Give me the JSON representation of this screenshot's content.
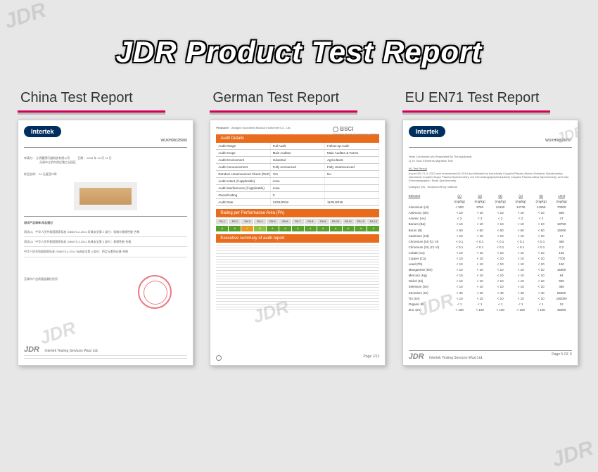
{
  "title": "JDR Product Test Report",
  "watermark": "JDR",
  "reports": [
    {
      "heading": "China Test Report",
      "badge": "Intertek",
      "doc_number": "WUXH00025006",
      "applicant_label": "申请方：",
      "applicant": "江阴嘉德乐器制造有限公司",
      "address": "无锡市江阴市周庄镇工业园区",
      "date_label": "日期：",
      "date": "2018 年 10 月 14 日",
      "sample_label": "样品名称：",
      "sample": "24 孔复音口琴",
      "standard1": "中华人民共和国国家标准 GB6675.2-2014 玩具安全第 2 部分：机械与物理性能   合格",
      "standard2": "中华人民共和国国家标准 GB6675.3-2014 玩具安全第 3 部分：易燃性能   合格",
      "standard3": "中华人民共和国国家标准 GB6675.4-2014 玩具安全第 4 部分：特定元素的迁移   合格",
      "section1": "测试产品清单,样品通过",
      "section2": "测试(1)",
      "section3": "测试(2)",
      "footer_org": "无锡市产品质量监督检验所",
      "footer_logo": "JDR",
      "footer_name": "Intertek Testing Services Wuxi Ltd."
    },
    {
      "heading": "German Test Report",
      "producer_label": "Producer:",
      "producer_name": "Jiangyin Soundreal Musical Instrument Co., Ltd.",
      "bsci_label": "BSCI",
      "bsci_sub": "Business Social Compliance Initiative",
      "audit_title": "Audit Details",
      "rows": [
        [
          "Audit Range",
          "Full Audit",
          "Follow-up Audit"
        ],
        [
          "Audit Scope",
          "Main Auditee",
          "Main Auditee & Farms"
        ],
        [
          "Audit Environment",
          "Industrial",
          "Agricultural"
        ],
        [
          "Audit Announcement",
          "Fully Announced",
          "Fully Unannounced"
        ],
        [
          "Random Unannounced Check (RUC)",
          "Yes",
          "No"
        ],
        [
          "Audit extent (if applicable)",
          "none",
          ""
        ],
        [
          "Audit interferences (if applicable)",
          "none",
          ""
        ],
        [
          "Overall rating",
          "C",
          ""
        ],
        [
          "Audit Date",
          "11/01/2018",
          "11/01/2018"
        ]
      ],
      "perf_title": "Rating per Performance Area (PA)",
      "perf_headers": [
        "PA 1",
        "PA 2",
        "PA 3",
        "PA 4",
        "PA 5",
        "PA 6",
        "PA 7",
        "PA 8",
        "PA 9",
        "PA 10",
        "PA 11",
        "PA 12",
        "PA 13"
      ],
      "perf_values": [
        "A",
        "A",
        "C",
        "B",
        "A",
        "A",
        "A",
        "A",
        "A",
        "A",
        "A",
        "A",
        "A"
      ],
      "perf_colors": [
        "#5aa02c",
        "#5aa02c",
        "#e69a1e",
        "#8fbf3f",
        "#5aa02c",
        "#5aa02c",
        "#5aa02c",
        "#5aa02c",
        "#5aa02c",
        "#5aa02c",
        "#5aa02c",
        "#5aa02c",
        "#5aa02c"
      ],
      "summary_title": "Executive summary of audit report",
      "page_label": "Page 1/12"
    },
    {
      "heading": "EU EN71 Test Report",
      "badge": "Intertek",
      "doc_number": "WUXH00026767",
      "tests_label": "Tests Conducted (As Requested By The Applicant)",
      "test1": "1) 19 Toxic Elements Migration Test",
      "result_title": "(A) Test Result",
      "method": "As per EN 71-3: 2013 and amendment A1:2014 and followed by Inductively Coupled Plasma Atomic Emission Spectrometry, Inductively Coupled Argon Plasma Spectrometry, Ion Chromatography/Inductively Coupled Plasma-Mass Spectrometry, and Gas Chromatography / Mass Spectrometry.",
      "category": "Category (III) : Scraped-off toy material",
      "columns": [
        "Element",
        "(1)",
        "(2)",
        "(3)",
        "(4)",
        "(5)",
        "Limit"
      ],
      "elements": [
        [
          "Aluminium (Al)",
          "< 500",
          "3750",
          "24150",
          "14730",
          "14260",
          "70000"
        ],
        [
          "Antimony (Sb)",
          "< 10",
          "< 10",
          "< 10",
          "< 10",
          "< 10",
          "560"
        ],
        [
          "Arsenic (As)",
          "< 2",
          "< 2",
          "< 2",
          "< 2",
          "< 2",
          "47"
        ],
        [
          "Barium (Ba)",
          "< 10",
          "< 10",
          "< 10",
          "< 10",
          "< 10",
          "18750"
        ],
        [
          "Boron (B)",
          "< 60",
          "< 60",
          "< 60",
          "< 60",
          "< 60",
          "15000"
        ],
        [
          "Cadmium (Cd)",
          "< 10",
          "< 10",
          "< 10",
          "< 10",
          "< 10",
          "17"
        ],
        [
          "Chromium (III) (Cr III)",
          "< 0.1",
          "< 0.1",
          "< 0.1",
          "< 0.1",
          "< 0.1",
          "460"
        ],
        [
          "Chromium (VI) (Cr VI)",
          "< 0.1",
          "< 0.1",
          "< 0.1",
          "< 0.1",
          "< 0.1",
          "0.2"
        ],
        [
          "Cobalt (Co)",
          "< 10",
          "< 10",
          "< 10",
          "< 10",
          "< 10",
          "130"
        ],
        [
          "Copper (Cu)",
          "< 10",
          "< 10",
          "< 10",
          "< 10",
          "< 10",
          "7700"
        ],
        [
          "Lead (Pb)",
          "< 10",
          "< 10",
          "< 10",
          "< 10",
          "< 10",
          "160"
        ],
        [
          "Manganese (Mn)",
          "< 10",
          "< 10",
          "< 10",
          "< 10",
          "< 10",
          "15000"
        ],
        [
          "Mercury (Hg)",
          "< 10",
          "< 10",
          "< 10",
          "< 10",
          "< 10",
          "94"
        ],
        [
          "Nickel (Ni)",
          "< 10",
          "< 10",
          "< 10",
          "< 10",
          "< 10",
          "930"
        ],
        [
          "Selenium (Se)",
          "< 10",
          "< 10",
          "< 10",
          "< 10",
          "< 10",
          "460"
        ],
        [
          "Strontium (Sr)",
          "< 40",
          "< 40",
          "< 40",
          "< 40",
          "< 40",
          "56000"
        ],
        [
          "Tin (Sn)",
          "< 10",
          "< 10",
          "< 10",
          "< 10",
          "< 10",
          "180000"
        ],
        [
          "Organic tin",
          "< 1",
          "< 1",
          "< 1",
          "< 1",
          "< 1",
          "12"
        ],
        [
          "Zinc (Zn)",
          "< 100",
          "< 100",
          "< 100",
          "< 100",
          "< 100",
          "46000"
        ]
      ],
      "unit": "(mg/kg)",
      "footer_logo": "JDR",
      "footer_name": "Intertek Testing Services Wuxi Ltd.",
      "page": "Page 5 OF 9"
    }
  ]
}
